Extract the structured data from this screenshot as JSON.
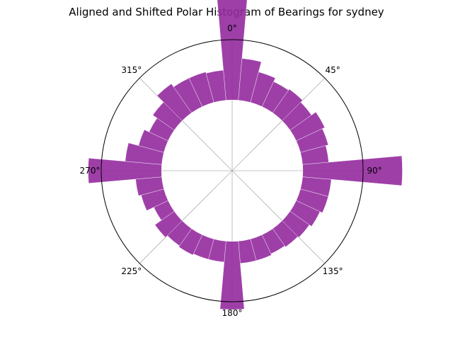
{
  "chart_data": {
    "type": "polar-bar",
    "title": "Aligned and Shifted Polar Histogram of Bearings for sydney",
    "angle_unit": "degrees",
    "direction": "clockwise",
    "zero_location": "N",
    "bar_color": "#942a9f",
    "grid_color": "#b0b0b0",
    "grid": true,
    "angle_ticks": [
      {
        "angle": 0,
        "label": "0°"
      },
      {
        "angle": 45,
        "label": "45°"
      },
      {
        "angle": 90,
        "label": "90°"
      },
      {
        "angle": 135,
        "label": "135°"
      },
      {
        "angle": 180,
        "label": "180°"
      },
      {
        "angle": 225,
        "label": "225°"
      },
      {
        "angle": 270,
        "label": "270°"
      },
      {
        "angle": 315,
        "label": "315°"
      }
    ],
    "bin_width_deg": 10,
    "bins": [
      {
        "angle": 0,
        "value": 1.0
      },
      {
        "angle": 10,
        "value": 0.32
      },
      {
        "angle": 20,
        "value": 0.24
      },
      {
        "angle": 30,
        "value": 0.21
      },
      {
        "angle": 40,
        "value": 0.22
      },
      {
        "angle": 50,
        "value": 0.2
      },
      {
        "angle": 60,
        "value": 0.24
      },
      {
        "angle": 70,
        "value": 0.22
      },
      {
        "angle": 80,
        "value": 0.2
      },
      {
        "angle": 90,
        "value": 0.76
      },
      {
        "angle": 100,
        "value": 0.22
      },
      {
        "angle": 110,
        "value": 0.22
      },
      {
        "angle": 120,
        "value": 0.2
      },
      {
        "angle": 130,
        "value": 0.18
      },
      {
        "angle": 140,
        "value": 0.17
      },
      {
        "angle": 150,
        "value": 0.16
      },
      {
        "angle": 160,
        "value": 0.17
      },
      {
        "angle": 170,
        "value": 0.17
      },
      {
        "angle": 180,
        "value": 0.52
      },
      {
        "angle": 190,
        "value": 0.16
      },
      {
        "angle": 200,
        "value": 0.16
      },
      {
        "angle": 210,
        "value": 0.17
      },
      {
        "angle": 220,
        "value": 0.16
      },
      {
        "angle": 230,
        "value": 0.18
      },
      {
        "angle": 240,
        "value": 0.12
      },
      {
        "angle": 250,
        "value": 0.18
      },
      {
        "angle": 260,
        "value": 0.2
      },
      {
        "angle": 270,
        "value": 0.56
      },
      {
        "angle": 280,
        "value": 0.28
      },
      {
        "angle": 290,
        "value": 0.2
      },
      {
        "angle": 300,
        "value": 0.16
      },
      {
        "angle": 310,
        "value": 0.2
      },
      {
        "angle": 320,
        "value": 0.27
      },
      {
        "angle": 330,
        "value": 0.24
      },
      {
        "angle": 340,
        "value": 0.24
      },
      {
        "angle": 350,
        "value": 0.23
      }
    ],
    "bottom_offset": 0.54,
    "rmax": 1.0
  }
}
